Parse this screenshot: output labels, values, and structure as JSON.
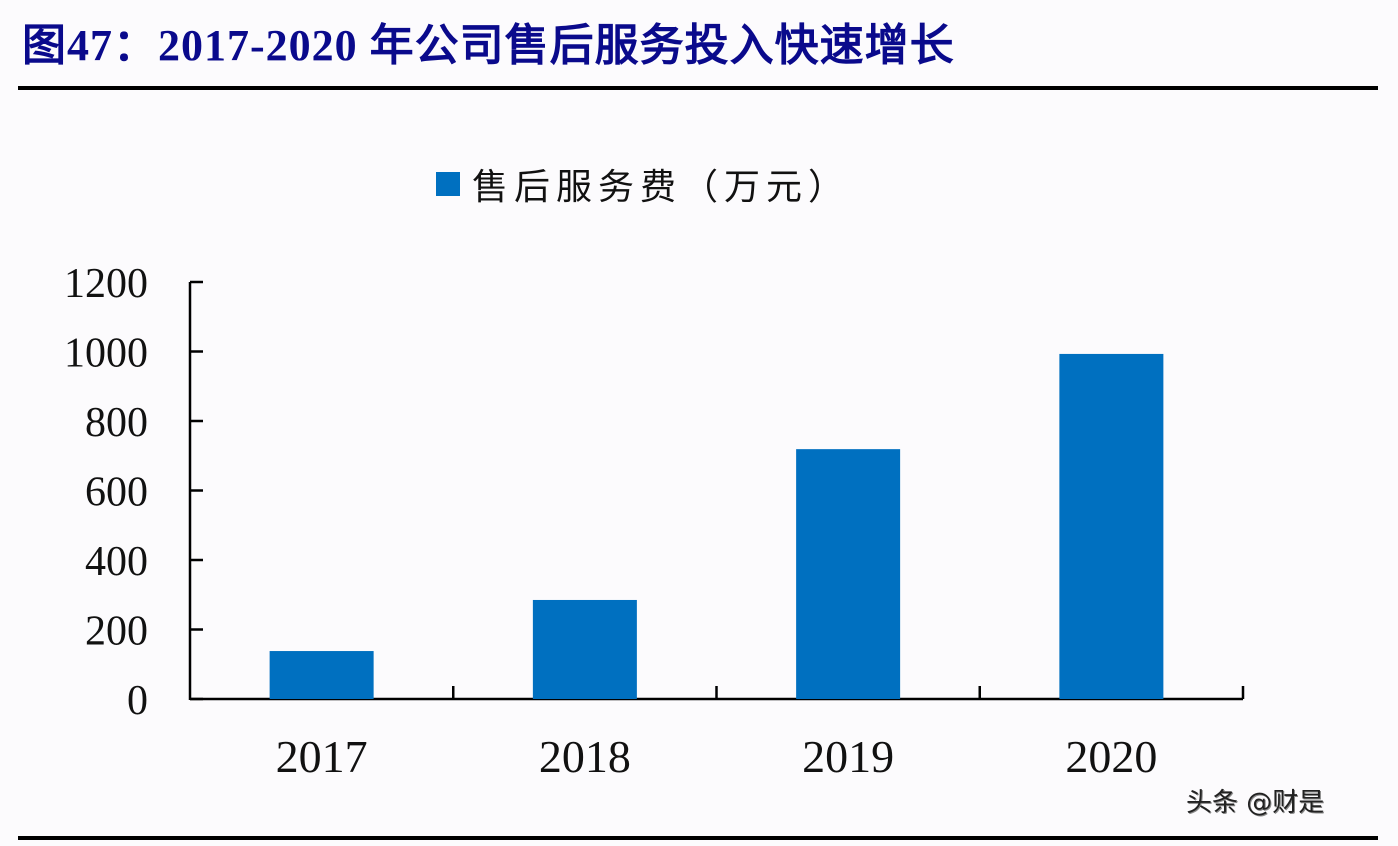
{
  "header": {
    "title": "图47：2017-2020 年公司售后服务投入快速增长"
  },
  "legend": {
    "label": "售后服务费（万元）",
    "color": "#0070c0"
  },
  "watermark": "头条 @财是",
  "chart_data": {
    "type": "bar",
    "title": "图47：2017-2020 年公司售后服务投入快速增长",
    "categories": [
      "2017",
      "2018",
      "2019",
      "2020"
    ],
    "series": [
      {
        "name": "售后服务费（万元）",
        "values": [
          138,
          285,
          719,
          993
        ],
        "color": "#0070c0"
      }
    ],
    "xlabel": "",
    "ylabel": "",
    "ylim": [
      0,
      1200
    ],
    "yticks": [
      0,
      200,
      400,
      600,
      800,
      1000,
      1200
    ],
    "grid": false,
    "legend_position": "top"
  }
}
